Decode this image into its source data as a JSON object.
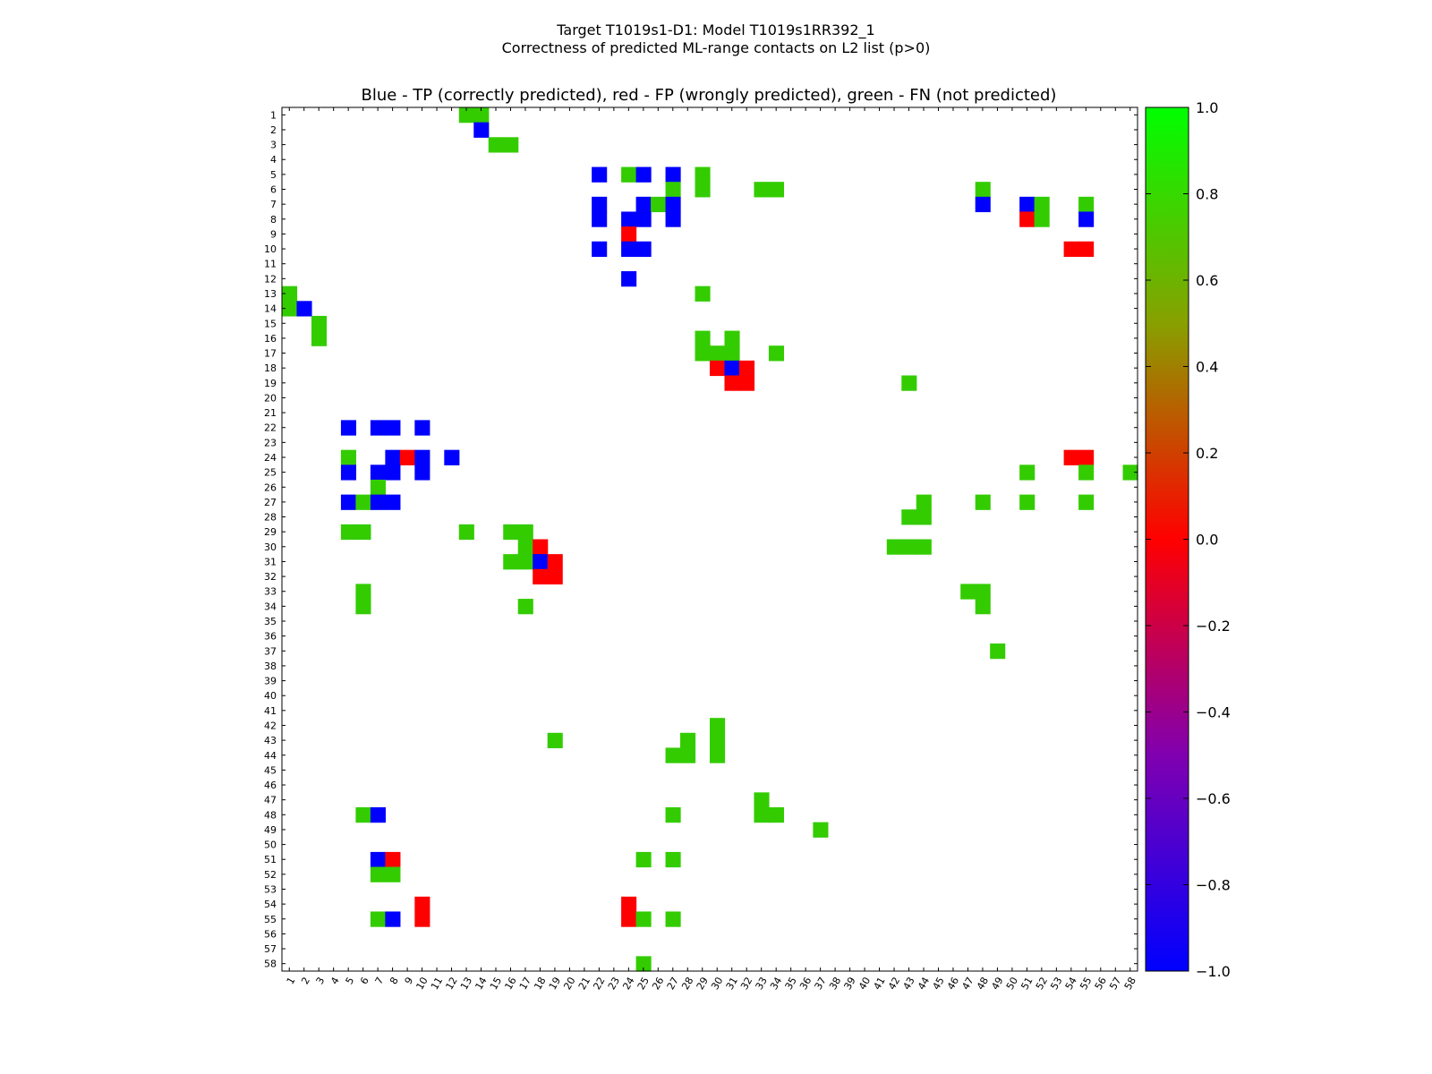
{
  "chart_data": {
    "type": "heatmap",
    "suptitle_line1": "Target T1019s1-D1: Model T1019s1RR392_1",
    "suptitle_line2": "Correctness of predicted ML-range contacts on L2 list (p>0)",
    "title": "Blue - TP (correctly predicted), red - FP (wrongly predicted), green - FN (not predicted)",
    "n": 58,
    "x_ticks": [
      "1",
      "2",
      "3",
      "4",
      "5",
      "6",
      "7",
      "8",
      "9",
      "10",
      "11",
      "12",
      "13",
      "14",
      "15",
      "16",
      "17",
      "18",
      "19",
      "20",
      "21",
      "22",
      "23",
      "24",
      "25",
      "26",
      "27",
      "28",
      "29",
      "30",
      "31",
      "32",
      "33",
      "34",
      "35",
      "36",
      "37",
      "38",
      "39",
      "40",
      "41",
      "42",
      "43",
      "44",
      "45",
      "46",
      "47",
      "48",
      "49",
      "50",
      "51",
      "52",
      "53",
      "54",
      "55",
      "56",
      "57",
      "58"
    ],
    "y_ticks": [
      "1",
      "2",
      "3",
      "4",
      "5",
      "6",
      "7",
      "8",
      "9",
      "10",
      "11",
      "12",
      "13",
      "14",
      "15",
      "16",
      "17",
      "18",
      "19",
      "20",
      "21",
      "22",
      "23",
      "24",
      "25",
      "26",
      "27",
      "28",
      "29",
      "30",
      "31",
      "32",
      "33",
      "34",
      "35",
      "36",
      "37",
      "38",
      "39",
      "40",
      "41",
      "42",
      "43",
      "44",
      "45",
      "46",
      "47",
      "48",
      "49",
      "50",
      "51",
      "52",
      "53",
      "54",
      "55",
      "56",
      "57",
      "58"
    ],
    "colorbar": {
      "min": -1.0,
      "max": 1.0,
      "ticks": [
        "1.0",
        "0.8",
        "0.6",
        "0.4",
        "0.2",
        "0.0",
        "−0.2",
        "−0.4",
        "−0.6",
        "−0.8",
        "−1.0"
      ]
    },
    "legend": {
      "tp": -1,
      "fp": 0,
      "fn": 0.8
    },
    "colors": {
      "tp": "#0000ff",
      "fp": "#ff0000",
      "fn": "#33cc00"
    },
    "colormap": [
      "#0000ff",
      "#8000b0",
      "#ff0000",
      "#88a000",
      "#00ff00"
    ],
    "cells": [
      [
        1,
        13,
        0.8
      ],
      [
        1,
        14,
        0.8
      ],
      [
        2,
        14,
        -1
      ],
      [
        3,
        15,
        0.8
      ],
      [
        3,
        16,
        0.8
      ],
      [
        5,
        22,
        -1
      ],
      [
        5,
        24,
        0.8
      ],
      [
        5,
        25,
        -1
      ],
      [
        5,
        27,
        -1
      ],
      [
        5,
        29,
        0.8
      ],
      [
        6,
        27,
        0.8
      ],
      [
        6,
        29,
        0.8
      ],
      [
        6,
        33,
        0.8
      ],
      [
        6,
        34,
        0.8
      ],
      [
        6,
        48,
        0.8
      ],
      [
        7,
        22,
        -1
      ],
      [
        7,
        25,
        -1
      ],
      [
        7,
        26,
        0.8
      ],
      [
        7,
        27,
        -1
      ],
      [
        7,
        48,
        -1
      ],
      [
        7,
        51,
        -1
      ],
      [
        7,
        52,
        0.8
      ],
      [
        7,
        55,
        0.8
      ],
      [
        8,
        22,
        -1
      ],
      [
        8,
        24,
        -1
      ],
      [
        8,
        25,
        -1
      ],
      [
        8,
        27,
        -1
      ],
      [
        8,
        51,
        0
      ],
      [
        8,
        52,
        0.8
      ],
      [
        8,
        55,
        -1
      ],
      [
        9,
        24,
        0
      ],
      [
        10,
        22,
        -1
      ],
      [
        10,
        24,
        -1
      ],
      [
        10,
        25,
        -1
      ],
      [
        10,
        54,
        0
      ],
      [
        10,
        55,
        0
      ],
      [
        12,
        24,
        -1
      ],
      [
        13,
        1,
        0.8
      ],
      [
        13,
        29,
        0.8
      ],
      [
        14,
        1,
        0.8
      ],
      [
        14,
        2,
        -1
      ],
      [
        15,
        3,
        0.8
      ],
      [
        16,
        3,
        0.8
      ],
      [
        16,
        29,
        0.8
      ],
      [
        16,
        31,
        0.8
      ],
      [
        17,
        29,
        0.8
      ],
      [
        17,
        30,
        0.8
      ],
      [
        17,
        31,
        0.8
      ],
      [
        17,
        34,
        0.8
      ],
      [
        18,
        30,
        0
      ],
      [
        18,
        31,
        -1
      ],
      [
        18,
        32,
        0
      ],
      [
        19,
        31,
        0
      ],
      [
        19,
        32,
        0
      ],
      [
        19,
        43,
        0.8
      ],
      [
        22,
        5,
        -1
      ],
      [
        22,
        7,
        -1
      ],
      [
        22,
        8,
        -1
      ],
      [
        22,
        10,
        -1
      ],
      [
        24,
        5,
        0.8
      ],
      [
        24,
        8,
        -1
      ],
      [
        24,
        9,
        0
      ],
      [
        24,
        10,
        -1
      ],
      [
        24,
        12,
        -1
      ],
      [
        24,
        54,
        0
      ],
      [
        24,
        55,
        0
      ],
      [
        25,
        5,
        -1
      ],
      [
        25,
        7,
        -1
      ],
      [
        25,
        8,
        -1
      ],
      [
        25,
        10,
        -1
      ],
      [
        25,
        51,
        0.8
      ],
      [
        25,
        55,
        0.8
      ],
      [
        25,
        58,
        0.8
      ],
      [
        26,
        7,
        0.8
      ],
      [
        27,
        5,
        -1
      ],
      [
        27,
        6,
        0.8
      ],
      [
        27,
        7,
        -1
      ],
      [
        27,
        8,
        -1
      ],
      [
        27,
        44,
        0.8
      ],
      [
        27,
        48,
        0.8
      ],
      [
        27,
        51,
        0.8
      ],
      [
        27,
        55,
        0.8
      ],
      [
        28,
        43,
        0.8
      ],
      [
        28,
        44,
        0.8
      ],
      [
        29,
        5,
        0.8
      ],
      [
        29,
        6,
        0.8
      ],
      [
        29,
        13,
        0.8
      ],
      [
        29,
        16,
        0.8
      ],
      [
        29,
        17,
        0.8
      ],
      [
        30,
        17,
        0.8
      ],
      [
        30,
        18,
        0
      ],
      [
        30,
        42,
        0.8
      ],
      [
        30,
        43,
        0.8
      ],
      [
        30,
        44,
        0.8
      ],
      [
        31,
        16,
        0.8
      ],
      [
        31,
        17,
        0.8
      ],
      [
        31,
        18,
        -1
      ],
      [
        31,
        19,
        0
      ],
      [
        32,
        18,
        0
      ],
      [
        32,
        19,
        0
      ],
      [
        33,
        6,
        0.8
      ],
      [
        33,
        47,
        0.8
      ],
      [
        33,
        48,
        0.8
      ],
      [
        34,
        6,
        0.8
      ],
      [
        34,
        17,
        0.8
      ],
      [
        34,
        48,
        0.8
      ],
      [
        37,
        49,
        0.8
      ],
      [
        42,
        30,
        0.8
      ],
      [
        43,
        19,
        0.8
      ],
      [
        43,
        28,
        0.8
      ],
      [
        43,
        30,
        0.8
      ],
      [
        44,
        27,
        0.8
      ],
      [
        44,
        28,
        0.8
      ],
      [
        44,
        30,
        0.8
      ],
      [
        47,
        33,
        0.8
      ],
      [
        48,
        6,
        0.8
      ],
      [
        48,
        7,
        -1
      ],
      [
        48,
        27,
        0.8
      ],
      [
        48,
        33,
        0.8
      ],
      [
        48,
        34,
        0.8
      ],
      [
        49,
        37,
        0.8
      ],
      [
        51,
        7,
        -1
      ],
      [
        51,
        8,
        0
      ],
      [
        51,
        25,
        0.8
      ],
      [
        51,
        27,
        0.8
      ],
      [
        52,
        7,
        0.8
      ],
      [
        52,
        8,
        0.8
      ],
      [
        54,
        10,
        0
      ],
      [
        54,
        24,
        0
      ],
      [
        55,
        7,
        0.8
      ],
      [
        55,
        8,
        -1
      ],
      [
        55,
        10,
        0
      ],
      [
        55,
        24,
        0
      ],
      [
        55,
        25,
        0.8
      ],
      [
        55,
        27,
        0.8
      ],
      [
        58,
        25,
        0.8
      ]
    ]
  }
}
